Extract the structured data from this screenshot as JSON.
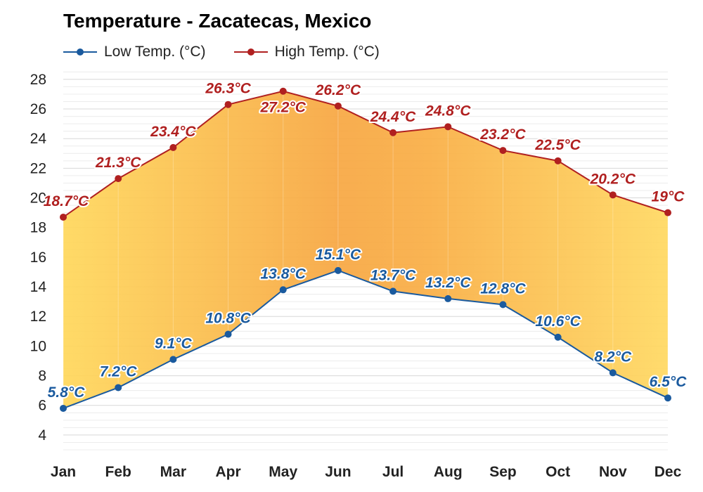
{
  "chart_data": {
    "type": "line",
    "title": "Temperature - Zacatecas, Mexico",
    "categories": [
      "Jan",
      "Feb",
      "Mar",
      "Apr",
      "May",
      "Jun",
      "Jul",
      "Aug",
      "Sep",
      "Oct",
      "Nov",
      "Dec"
    ],
    "series": [
      {
        "name": "Low Temp. (°C)",
        "color": "#1a5a9e",
        "values": [
          5.8,
          7.2,
          9.1,
          10.8,
          13.8,
          15.1,
          13.7,
          13.2,
          12.8,
          10.6,
          8.2,
          6.5
        ],
        "labels": [
          "5.8°C",
          "7.2°C",
          "9.1°C",
          "10.8°C",
          "13.8°C",
          "15.1°C",
          "13.7°C",
          "13.2°C",
          "12.8°C",
          "10.6°C",
          "8.2°C",
          "6.5°C"
        ]
      },
      {
        "name": "High Temp. (°C)",
        "color": "#b02020",
        "values": [
          18.7,
          21.3,
          23.4,
          26.3,
          27.2,
          26.2,
          24.4,
          24.8,
          23.2,
          22.5,
          20.2,
          19.0
        ],
        "labels": [
          "18.7°C",
          "21.3°C",
          "23.4°C",
          "26.3°C",
          "27.2°C",
          "26.2°C",
          "24.4°C",
          "24.8°C",
          "23.2°C",
          "22.5°C",
          "20.2°C",
          "19°C"
        ]
      }
    ],
    "yticks": [
      4,
      6,
      8,
      10,
      12,
      14,
      16,
      18,
      20,
      22,
      24,
      26,
      28
    ],
    "ylim": [
      3,
      28.8
    ],
    "fill_between": true,
    "fill_colors": {
      "cool": "#ffd75a",
      "warm": "#f7a640"
    },
    "grid": true,
    "legend_position": "top-left"
  }
}
